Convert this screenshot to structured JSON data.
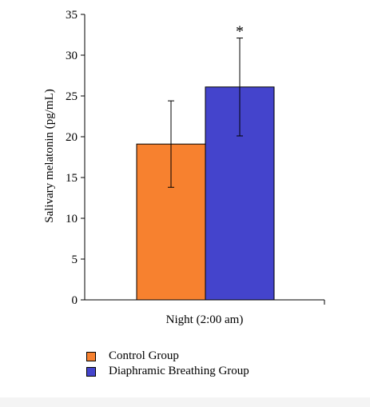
{
  "chart_data": {
    "type": "bar",
    "categories": [
      "Night (2:00 am)"
    ],
    "series": [
      {
        "name": "Control Group",
        "values": [
          19.1
        ],
        "error": [
          5.3
        ],
        "color": "#f7812f"
      },
      {
        "name": "Diaphramic Breathing Group",
        "values": [
          26.1
        ],
        "error": [
          6.0
        ],
        "color": "#4444cc"
      }
    ],
    "ylabel": "Salivary melatonin (pg/mL)",
    "ylim": [
      0,
      35
    ],
    "yticks": [
      "0",
      "5",
      "10",
      "15",
      "20",
      "25",
      "30",
      "35"
    ],
    "significance_marker": "*",
    "legend_position": "bottom"
  }
}
